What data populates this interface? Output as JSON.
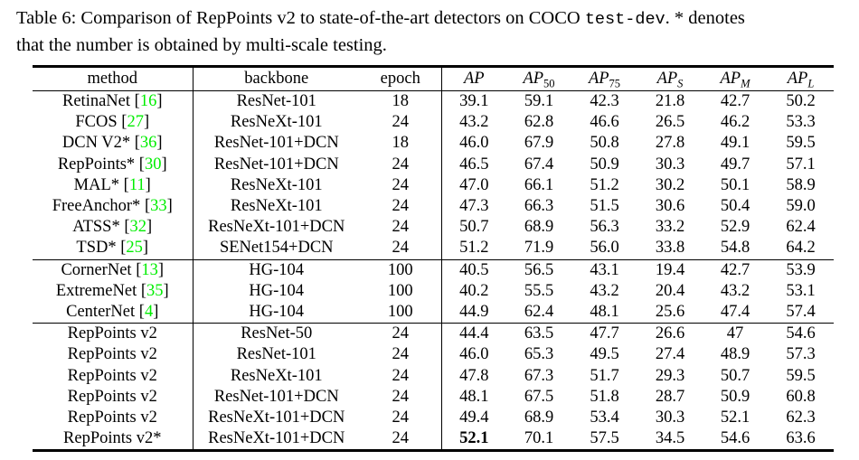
{
  "caption": {
    "line1_before_mono": "Table 6: Comparison of RepPoints v2 to state-of-the-art detectors on COCO ",
    "line1_mono": "test-dev",
    "line1_after_mono": ". * denotes",
    "line2": "that the number is obtained by multi-scale testing."
  },
  "colors": {
    "citation_green": "#00ee00",
    "text_black": "#000000"
  },
  "table": {
    "columns": [
      {
        "label": "method"
      },
      {
        "label": "backbone"
      },
      {
        "label": "epoch"
      },
      {
        "base": "AP",
        "sub": ""
      },
      {
        "base": "AP",
        "sub": "50"
      },
      {
        "base": "AP",
        "sub": "75"
      },
      {
        "base": "AP",
        "sub": "S"
      },
      {
        "base": "AP",
        "sub": "M"
      },
      {
        "base": "AP",
        "sub": "L"
      }
    ],
    "groups": [
      {
        "rows": [
          {
            "method": "RetinaNet",
            "cite": "16",
            "backbone": "ResNet-101",
            "epoch": "18",
            "values": [
              "39.1",
              "59.1",
              "42.3",
              "21.8",
              "42.7",
              "50.2"
            ]
          },
          {
            "method": "FCOS",
            "cite": "27",
            "backbone": "ResNeXt-101",
            "epoch": "24",
            "values": [
              "43.2",
              "62.8",
              "46.6",
              "26.5",
              "46.2",
              "53.3"
            ]
          },
          {
            "method": "DCN V2*",
            "cite": "36",
            "backbone": "ResNet-101+DCN",
            "epoch": "18",
            "values": [
              "46.0",
              "67.9",
              "50.8",
              "27.8",
              "49.1",
              "59.5"
            ]
          },
          {
            "method": "RepPoints*",
            "cite": "30",
            "backbone": "ResNet-101+DCN",
            "epoch": "24",
            "values": [
              "46.5",
              "67.4",
              "50.9",
              "30.3",
              "49.7",
              "57.1"
            ]
          },
          {
            "method": "MAL*",
            "cite": "11",
            "backbone": "ResNeXt-101",
            "epoch": "24",
            "values": [
              "47.0",
              "66.1",
              "51.2",
              "30.2",
              "50.1",
              "58.9"
            ]
          },
          {
            "method": "FreeAnchor*",
            "cite": "33",
            "backbone": "ResNeXt-101",
            "epoch": "24",
            "values": [
              "47.3",
              "66.3",
              "51.5",
              "30.6",
              "50.4",
              "59.0"
            ]
          },
          {
            "method": "ATSS*",
            "cite": "32",
            "backbone": "ResNeXt-101+DCN",
            "epoch": "24",
            "values": [
              "50.7",
              "68.9",
              "56.3",
              "33.2",
              "52.9",
              "62.4"
            ]
          },
          {
            "method": "TSD*",
            "cite": "25",
            "backbone": "SENet154+DCN",
            "epoch": "24",
            "values": [
              "51.2",
              "71.9",
              "56.0",
              "33.8",
              "54.8",
              "64.2"
            ]
          }
        ]
      },
      {
        "rows": [
          {
            "method": "CornerNet",
            "cite": "13",
            "backbone": "HG-104",
            "epoch": "100",
            "values": [
              "40.5",
              "56.5",
              "43.1",
              "19.4",
              "42.7",
              "53.9"
            ]
          },
          {
            "method": "ExtremeNet",
            "cite": "35",
            "backbone": "HG-104",
            "epoch": "100",
            "values": [
              "40.2",
              "55.5",
              "43.2",
              "20.4",
              "43.2",
              "53.1"
            ]
          },
          {
            "method": "CenterNet",
            "cite": "4",
            "backbone": "HG-104",
            "epoch": "100",
            "values": [
              "44.9",
              "62.4",
              "48.1",
              "25.6",
              "47.4",
              "57.4"
            ]
          }
        ]
      },
      {
        "rows": [
          {
            "method": "RepPoints v2",
            "backbone": "ResNet-50",
            "epoch": "24",
            "values": [
              "44.4",
              "63.5",
              "47.7",
              "26.6",
              "47",
              "54.6"
            ]
          },
          {
            "method": "RepPoints v2",
            "backbone": "ResNet-101",
            "epoch": "24",
            "values": [
              "46.0",
              "65.3",
              "49.5",
              "27.4",
              "48.9",
              "57.3"
            ]
          },
          {
            "method": "RepPoints v2",
            "backbone": "ResNeXt-101",
            "epoch": "24",
            "values": [
              "47.8",
              "67.3",
              "51.7",
              "29.3",
              "50.7",
              "59.5"
            ]
          },
          {
            "method": "RepPoints v2",
            "backbone": "ResNet-101+DCN",
            "epoch": "24",
            "values": [
              "48.1",
              "67.5",
              "51.8",
              "28.7",
              "50.9",
              "60.8"
            ]
          },
          {
            "method": "RepPoints v2",
            "backbone": "ResNeXt-101+DCN",
            "epoch": "24",
            "values": [
              "49.4",
              "68.9",
              "53.4",
              "30.3",
              "52.1",
              "62.3"
            ]
          },
          {
            "method": "RepPoints v2*",
            "backbone": "ResNeXt-101+DCN",
            "epoch": "24",
            "values": [
              "52.1",
              "70.1",
              "57.5",
              "34.5",
              "54.6",
              "63.6"
            ],
            "bold_cols": [
              0
            ]
          }
        ]
      }
    ]
  }
}
